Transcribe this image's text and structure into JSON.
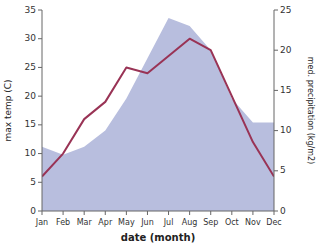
{
  "chart_data": {
    "type": "line",
    "categories": [
      "Jan",
      "Feb",
      "Mar",
      "Apr",
      "May",
      "Jun",
      "Jul",
      "Aug",
      "Sep",
      "Oct",
      "Nov",
      "Dec"
    ],
    "xlabel": "date (month)",
    "ylabel": "max temp (C)",
    "y2label": "med. precipitation (kg/m2)",
    "ylim": [
      0,
      35
    ],
    "yticks": [
      0,
      5,
      10,
      15,
      20,
      25,
      30,
      35
    ],
    "y2lim": [
      0,
      25
    ],
    "y2ticks": [
      0,
      5,
      10,
      15,
      20,
      25
    ],
    "grid": false,
    "series": [
      {
        "type": "area",
        "color": "#b8bede",
        "axis": "y2",
        "values": [
          8,
          7,
          8,
          10,
          14,
          19,
          24,
          23,
          20,
          14,
          11,
          11
        ]
      },
      {
        "type": "line",
        "color": "#993355",
        "values": [
          6,
          10,
          16,
          19,
          25,
          24,
          27,
          30,
          28,
          20,
          12,
          6
        ]
      }
    ]
  }
}
